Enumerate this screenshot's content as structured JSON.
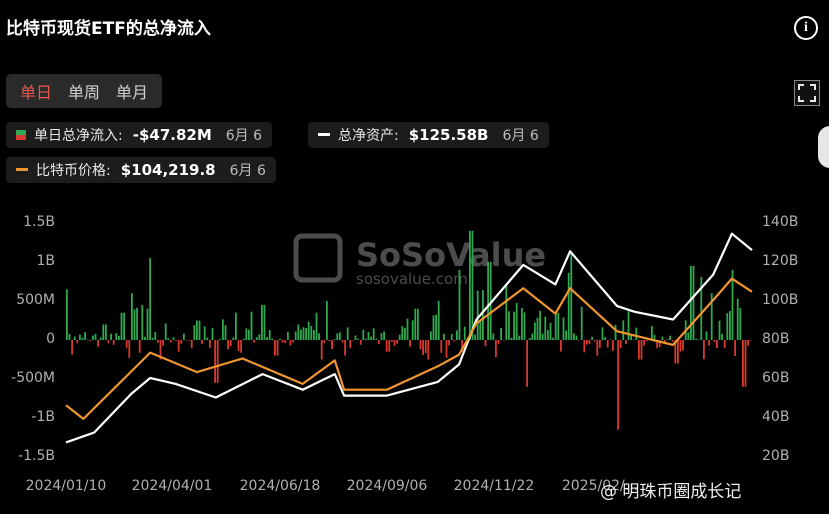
{
  "header": {
    "title": "比特币现货ETF的总净流入",
    "info_icon": "info-icon"
  },
  "tabs": [
    {
      "label": "单日",
      "active": true
    },
    {
      "label": "单周",
      "active": false
    },
    {
      "label": "单月",
      "active": false
    }
  ],
  "legend": {
    "daily_flow": {
      "label": "单日总净流入:",
      "value": "-$47.82M",
      "date": "6月 6"
    },
    "net_assets": {
      "label": "总净资产:",
      "value": "$125.58B",
      "date": "6月 6"
    },
    "btc_price": {
      "label": "比特币价格:",
      "value": "$104,219.8",
      "date": "6月 6"
    }
  },
  "watermark": {
    "brand": "SoSoValue",
    "url": "sosovalue.com"
  },
  "footer_watermark": "@ 明珠币圈成长记",
  "colors": {
    "inflow": "#2fa84f",
    "outflow": "#d93a2f",
    "assets_line": "#ffffff",
    "price_line": "#f0962e",
    "positive_marker": "#2fa84f",
    "negative_marker": "#d93a2f"
  },
  "chart_data": {
    "type": "bar",
    "title": "比特币现货ETF的总净流入",
    "x_ticks": [
      "2024/01/10",
      "2024/04/01",
      "2024/06/18",
      "2024/09/06",
      "2024/11/22",
      "2025/02/..."
    ],
    "left_axis": {
      "ticks": [
        "1.5B",
        "1B",
        "500M",
        "0",
        "-500M",
        "-1B",
        "-1.5B"
      ],
      "range": [
        -1.5,
        1.5
      ],
      "unit": "B USD"
    },
    "right_axis": {
      "ticks": [
        "140B",
        "120B",
        "100B",
        "80B",
        "60B",
        "40B",
        "20B"
      ],
      "range": [
        20,
        140
      ],
      "unit": "B USD"
    },
    "x_range": [
      "2024/01/10",
      "2025/06/06"
    ],
    "series": [
      {
        "name": "单日总净流入",
        "type": "bar",
        "axis": "left",
        "points": [
          [
            "2024/01/10",
            0.65
          ],
          [
            "2024/01/24",
            0.1
          ],
          [
            "2024/02/07",
            0.2
          ],
          [
            "2024/02/21",
            0.35
          ],
          [
            "2024/02/28",
            0.6
          ],
          [
            "2024/03/06",
            0.45
          ],
          [
            "2024/03/12",
            1.05
          ],
          [
            "2024/03/20",
            -0.25
          ],
          [
            "2024/04/03",
            -0.15
          ],
          [
            "2024/04/17",
            0.25
          ],
          [
            "2024/05/01",
            -0.55
          ],
          [
            "2024/05/15",
            0.35
          ],
          [
            "2024/06/05",
            0.45
          ],
          [
            "2024/06/14",
            -0.2
          ],
          [
            "2024/07/01",
            0.2
          ],
          [
            "2024/07/15",
            0.35
          ],
          [
            "2024/07/22",
            0.5
          ],
          [
            "2024/08/05",
            -0.2
          ],
          [
            "2024/08/26",
            0.15
          ],
          [
            "2024/09/06",
            -0.15
          ],
          [
            "2024/09/27",
            0.4
          ],
          [
            "2024/10/14",
            0.5
          ],
          [
            "2024/10/30",
            0.9
          ],
          [
            "2024/11/07",
            1.4
          ],
          [
            "2024/11/21",
            1.0
          ],
          [
            "2024/12/04",
            0.7
          ],
          [
            "2024/12/19",
            -0.6
          ],
          [
            "2025/01/10",
            0.35
          ],
          [
            "2025/01/21",
            1.1
          ],
          [
            "2025/02/10",
            -0.2
          ],
          [
            "2025/02/25",
            -1.15
          ],
          [
            "2025/03/14",
            -0.25
          ],
          [
            "2025/04/10",
            -0.3
          ],
          [
            "2025/04/22",
            0.95
          ],
          [
            "2025/05/06",
            0.6
          ],
          [
            "2025/05/22",
            0.9
          ],
          [
            "2025/05/30",
            -0.6
          ],
          [
            "2025/06/06",
            -0.05
          ]
        ]
      },
      {
        "name": "总净资产",
        "type": "line",
        "axis": "right",
        "points": [
          [
            "2024/01/10",
            27
          ],
          [
            "2024/01/31",
            32
          ],
          [
            "2024/02/28",
            52
          ],
          [
            "2024/03/13",
            60
          ],
          [
            "2024/04/01",
            57
          ],
          [
            "2024/05/01",
            50
          ],
          [
            "2024/06/05",
            62
          ],
          [
            "2024/07/05",
            54
          ],
          [
            "2024/07/29",
            62
          ],
          [
            "2024/08/05",
            51
          ],
          [
            "2024/09/06",
            51
          ],
          [
            "2024/10/14",
            58
          ],
          [
            "2024/10/30",
            67
          ],
          [
            "2024/11/12",
            90
          ],
          [
            "2024/12/17",
            118
          ],
          [
            "2025/01/10",
            108
          ],
          [
            "2025/01/21",
            125
          ],
          [
            "2025/02/25",
            97
          ],
          [
            "2025/03/10",
            94
          ],
          [
            "2025/04/08",
            90
          ],
          [
            "2025/05/08",
            113
          ],
          [
            "2025/05/22",
            134
          ],
          [
            "2025/06/06",
            125.58
          ]
        ]
      },
      {
        "name": "比特币价格",
        "type": "line",
        "axis": "right",
        "points": [
          [
            "2024/01/10",
            46
          ],
          [
            "2024/01/23",
            39
          ],
          [
            "2024/03/13",
            73
          ],
          [
            "2024/04/17",
            63
          ],
          [
            "2024/05/21",
            70
          ],
          [
            "2024/07/05",
            57
          ],
          [
            "2024/07/29",
            69
          ],
          [
            "2024/08/05",
            54
          ],
          [
            "2024/09/06",
            54
          ],
          [
            "2024/10/14",
            66
          ],
          [
            "2024/10/30",
            72
          ],
          [
            "2024/11/12",
            88
          ],
          [
            "2024/12/17",
            106
          ],
          [
            "2025/01/10",
            93
          ],
          [
            "2025/01/21",
            106
          ],
          [
            "2025/02/25",
            84
          ],
          [
            "2025/04/08",
            77
          ],
          [
            "2025/05/08",
            100
          ],
          [
            "2025/05/22",
            111
          ],
          [
            "2025/06/06",
            104.2
          ]
        ]
      }
    ],
    "grid": false,
    "legend_placement": "top"
  }
}
